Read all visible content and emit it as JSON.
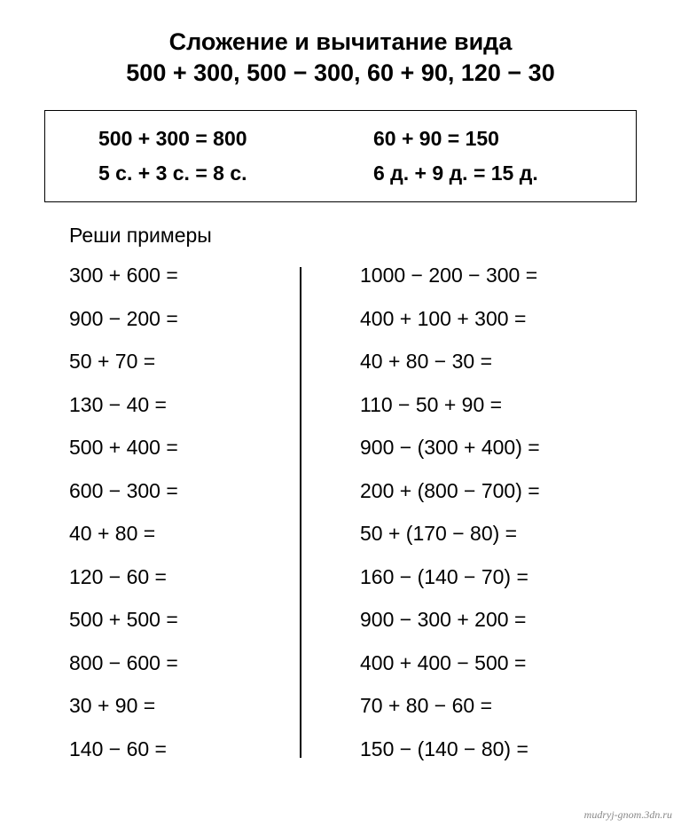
{
  "title_line1": "Сложение и вычитание вида",
  "title_line2": "500 + 300, 500 − 300, 60 + 90, 120 − 30",
  "box": {
    "r1c1": "500 + 300 = 800",
    "r1c2": "60 + 90 = 150",
    "r2c1": "5 с. + 3 с. = 8 с.",
    "r2c2": "6 д. + 9 д. = 15 д."
  },
  "subheading": "Реши примеры",
  "left": [
    "300 + 600 =",
    "900 − 200 =",
    "50 + 70 =",
    "130 − 40 =",
    "500 + 400 =",
    "600 − 300 =",
    "40 + 80 =",
    "120 − 60 =",
    "500 + 500 =",
    "800 − 600 =",
    "30 + 90 =",
    "140 − 60 ="
  ],
  "right": [
    "1000 − 200 − 300 =",
    "400 + 100 + 300 =",
    "40 + 80 − 30 =",
    "110 − 50 + 90 =",
    "900 − (300 + 400) =",
    "200 + (800 − 700) =",
    "50 + (170 − 80) =",
    "160 − (140 − 70) =",
    "900 − 300 + 200 =",
    "400 + 400 − 500 =",
    "70 + 80 − 60 =",
    "150 − (140 − 80) ="
  ],
  "watermark": "mudryj-gnom.3dn.ru"
}
